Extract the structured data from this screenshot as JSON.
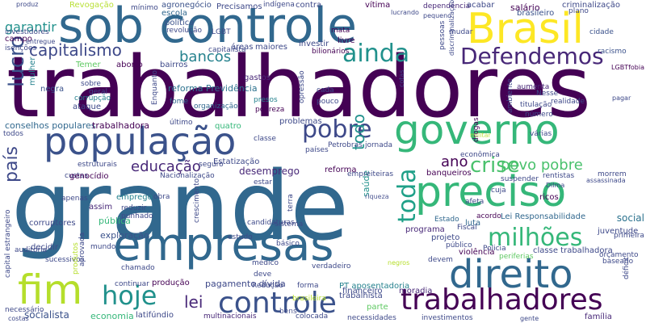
{
  "words": [
    {
      "text": "trabalhadores",
      "color": "#440154"
    },
    {
      "text": "grande",
      "color": "#31688e"
    },
    {
      "text": "sob controle",
      "color": "#31688e"
    },
    {
      "text": "governo",
      "color": "#35b779"
    },
    {
      "text": "população",
      "color": "#3b528b"
    },
    {
      "text": "empresas",
      "color": "#31688e"
    },
    {
      "text": "preciso",
      "color": "#35b779"
    },
    {
      "text": "Brasil",
      "color": "#fde725"
    },
    {
      "text": "direito",
      "color": "#31688e"
    },
    {
      "text": "controle",
      "color": "#3b528b"
    },
    {
      "text": "trabalhadores",
      "color": "#440154"
    },
    {
      "text": "fim",
      "color": "#b5de2b"
    },
    {
      "text": "hoje",
      "color": "#21918c"
    },
    {
      "text": "milhões",
      "color": "#35b779"
    },
    {
      "text": "Defendemos",
      "color": "#482878"
    },
    {
      "text": "ainda",
      "color": "#21918c"
    },
    {
      "text": "pobre",
      "color": "#3e4989"
    },
    {
      "text": "capitalismo",
      "color": "#3e4989"
    },
    {
      "text": "lucro",
      "color": "#3b528b"
    },
    {
      "text": "bancos",
      "color": "#26828e"
    },
    {
      "text": "crise",
      "color": "#4ac16d"
    },
    {
      "text": "toda",
      "color": "#1fa088"
    },
    {
      "text": "país",
      "color": "#3e4989"
    },
    {
      "text": "educação",
      "color": "#482878"
    },
    {
      "text": "povo pobre",
      "color": "#4ac16d"
    },
    {
      "text": "ano",
      "color": "#440154"
    },
    {
      "text": "todo",
      "color": "#21918c"
    },
    {
      "text": "lei",
      "color": "#482878"
    },
    {
      "text": "garantir",
      "color": "#21918c"
    },
    {
      "text": "campo",
      "color": "#440154"
    },
    {
      "text": "Temer",
      "color": "#5ec962"
    },
    {
      "text": "mulher",
      "color": "#26828e"
    },
    {
      "text": "negra",
      "color": "#3b528b"
    },
    {
      "text": "aborto",
      "color": "#440154"
    },
    {
      "text": "bairros",
      "color": "#3e4989"
    },
    {
      "text": "reforma Previdência",
      "color": "#2c728e"
    },
    {
      "text": "gastos",
      "color": "#482878"
    },
    {
      "text": "conselhos populares",
      "color": "#31688e"
    },
    {
      "text": "trabalhadora",
      "color": "#440154"
    },
    {
      "text": "desemprego",
      "color": "#482878"
    },
    {
      "text": "Estatização",
      "color": "#3e4989"
    },
    {
      "text": "reforma",
      "color": "#440154"
    },
    {
      "text": "saúde",
      "color": "#21918c"
    },
    {
      "text": "problemas",
      "color": "#3e4989"
    },
    {
      "text": "Lei Responsabilidade",
      "color": "#31688e"
    },
    {
      "text": "social",
      "color": "#2c728e"
    },
    {
      "text": "juventude",
      "color": "#3e4989"
    },
    {
      "text": "classe trabalhadora",
      "color": "#3e4989"
    },
    {
      "text": "violência",
      "color": "#440154"
    },
    {
      "text": "exploração",
      "color": "#3b528b"
    },
    {
      "text": "pagamento dívida",
      "color": "#3e4989"
    },
    {
      "text": "PT aposentadoria",
      "color": "#26828e"
    },
    {
      "text": "economia",
      "color": "#35b779"
    },
    {
      "text": "socialista",
      "color": "#3b528b"
    },
    {
      "text": "produção",
      "color": "#440154"
    },
    {
      "text": "trabalhista",
      "color": "#3e4989"
    },
    {
      "text": "moradia",
      "color": "#482878"
    },
    {
      "text": "financeiro",
      "color": "#3e4989"
    },
    {
      "text": "parte",
      "color": "#5ec962"
    },
    {
      "text": "cidade",
      "color": "#3b528b"
    },
    {
      "text": "latifúndio",
      "color": "#3e4989"
    },
    {
      "text": "multinacionais",
      "color": "#482878"
    },
    {
      "text": "colocada",
      "color": "#3e4989"
    },
    {
      "text": "necessidades",
      "color": "#3e4989"
    },
    {
      "text": "investimentos",
      "color": "#3e4989"
    },
    {
      "text": "família",
      "color": "#482878"
    },
    {
      "text": "emprego",
      "color": "#26828e"
    },
    {
      "text": "pública",
      "color": "#35b779"
    },
    {
      "text": "assim",
      "color": "#482878"
    },
    {
      "text": "obra",
      "color": "#3e4989"
    },
    {
      "text": "luta",
      "color": "#31688e"
    },
    {
      "text": "ricos",
      "color": "#440154"
    },
    {
      "text": "Estado",
      "color": "#31688e"
    },
    {
      "text": "acordo",
      "color": "#440154"
    },
    {
      "text": "programa",
      "color": "#482878"
    },
    {
      "text": "projeto",
      "color": "#3e4989"
    },
    {
      "text": "devem",
      "color": "#3e4989"
    },
    {
      "text": "Policia",
      "color": "#3e4989"
    },
    {
      "text": "periferias",
      "color": "#5ec962"
    },
    {
      "text": "drogas",
      "color": "#440154"
    },
    {
      "text": "militar",
      "color": "#b5de2b"
    },
    {
      "text": "banqueiros",
      "color": "#440154"
    },
    {
      "text": "racismo",
      "color": "#3b528b"
    },
    {
      "text": "agronegócio",
      "color": "#3b528b"
    },
    {
      "text": "Precisamos",
      "color": "#3e4989"
    },
    {
      "text": "indígena",
      "color": "#3e4989"
    },
    {
      "text": "contra",
      "color": "#3e4989"
    },
    {
      "text": "vítima",
      "color": "#440154"
    },
    {
      "text": "dependência",
      "color": "#482878"
    },
    {
      "text": "acabar",
      "color": "#3e4989"
    },
    {
      "text": "salário",
      "color": "#440154"
    },
    {
      "text": "brasileiro",
      "color": "#3b528b"
    },
    {
      "text": "criminalização",
      "color": "#3e4989"
    },
    {
      "text": "Revogação",
      "color": "#b5de2b"
    },
    {
      "text": "mínimo",
      "color": "#3e4989"
    },
    {
      "text": "escola",
      "color": "#31688e"
    },
    {
      "text": "política",
      "color": "#3b528b"
    },
    {
      "text": "revolução",
      "color": "#3e4989"
    },
    {
      "text": "LGBT",
      "color": "#3e4989"
    },
    {
      "text": "investir",
      "color": "#3e4989"
    },
    {
      "text": "maiores",
      "color": "#3e4989"
    },
    {
      "text": "áreas",
      "color": "#3e4989"
    },
    {
      "text": "capitalista",
      "color": "#3e4989"
    },
    {
      "text": "bilionários",
      "color": "#440154"
    },
    {
      "text": "mata",
      "color": "#440154"
    },
    {
      "text": "livre",
      "color": "#440154"
    },
    {
      "text": "plano",
      "color": "#3e4989"
    },
    {
      "text": "LGBTfobia",
      "color": "#440154"
    },
    {
      "text": "realidade",
      "color": "#3e4989"
    },
    {
      "text": "titulação",
      "color": "#3e4989"
    },
    {
      "text": "número",
      "color": "#3e4989"
    },
    {
      "text": "sobre",
      "color": "#3e4989"
    },
    {
      "text": "geral",
      "color": "#3e4989"
    },
    {
      "text": "ataque",
      "color": "#3e4989"
    },
    {
      "text": "corrupção",
      "color": "#26828e"
    },
    {
      "text": "Enquanto",
      "color": "#3e4989"
    },
    {
      "text": "organização",
      "color": "#31688e"
    },
    {
      "text": "fome",
      "color": "#31688e"
    },
    {
      "text": "presos",
      "color": "#26828e"
    },
    {
      "text": "pobreza",
      "color": "#440154"
    },
    {
      "text": "cada",
      "color": "#3e4989"
    },
    {
      "text": "pouco",
      "color": "#3e4989"
    },
    {
      "text": "opressão",
      "color": "#3e4989"
    },
    {
      "text": "Nesse",
      "color": "#3e4989"
    },
    {
      "text": "aumenta",
      "color": "#482878"
    },
    {
      "text": "quatro",
      "color": "#35b779"
    },
    {
      "text": "último",
      "color": "#3e4989"
    },
    {
      "text": "jornada",
      "color": "#3e4989"
    },
    {
      "text": "países",
      "color": "#3e4989"
    },
    {
      "text": "Petrobras",
      "color": "#3e4989"
    },
    {
      "text": "classe",
      "color": "#3e4989"
    },
    {
      "text": "estruturais",
      "color": "#3e4989"
    },
    {
      "text": "custas",
      "color": "#3e4989"
    },
    {
      "text": "genocídio",
      "color": "#440154"
    },
    {
      "text": "Nacionalização",
      "color": "#3e4989"
    },
    {
      "text": "seguro",
      "color": "#3e4989"
    },
    {
      "text": "estar",
      "color": "#3e4989"
    },
    {
      "text": "empreiteiras",
      "color": "#3e4989"
    },
    {
      "text": "várias",
      "color": "#3e4989"
    },
    {
      "text": "suspender",
      "color": "#3e4989"
    },
    {
      "text": "morrem",
      "color": "#3e4989"
    },
    {
      "text": "assassinada",
      "color": "#3e4989"
    },
    {
      "text": "apenas",
      "color": "#3e4989"
    },
    {
      "text": "cuja",
      "color": "#3e4989"
    },
    {
      "text": "reduzir",
      "color": "#3e4989"
    },
    {
      "text": "punhado",
      "color": "#3e4989"
    },
    {
      "text": "corruptores",
      "color": "#3e4989"
    },
    {
      "text": "capital estrangeiro",
      "color": "#3e4989"
    },
    {
      "text": "decidir",
      "color": "#3e4989"
    },
    {
      "text": "mundo",
      "color": "#3e4989"
    },
    {
      "text": "estudo",
      "color": "#3e4989"
    },
    {
      "text": "candidaturas",
      "color": "#3e4989"
    },
    {
      "text": "sistema",
      "color": "#3e4989"
    },
    {
      "text": "verdadeiro",
      "color": "#3e4989"
    },
    {
      "text": "crescimento",
      "color": "#3e4989"
    },
    {
      "text": "terra",
      "color": "#3e4989"
    },
    {
      "text": "Fiscal",
      "color": "#3e4989"
    },
    {
      "text": "público",
      "color": "#3e4989"
    },
    {
      "text": "afeta",
      "color": "#3e4989"
    },
    {
      "text": "primeira",
      "color": "#3e4989"
    },
    {
      "text": "orçamento",
      "color": "#3e4989"
    },
    {
      "text": "baseado",
      "color": "#3e4989"
    },
    {
      "text": "déficit",
      "color": "#3e4989"
    },
    {
      "text": "auditoria",
      "color": "#3e4989"
    },
    {
      "text": "sucessivos",
      "color": "#3e4989"
    },
    {
      "text": "chamado",
      "color": "#3e4989"
    },
    {
      "text": "continuar",
      "color": "#3e4989"
    },
    {
      "text": "deve",
      "color": "#3e4989"
    },
    {
      "text": "Redução",
      "color": "#3e4989"
    },
    {
      "text": "forma",
      "color": "#3e4989"
    },
    {
      "text": "brasileira",
      "color": "#b5de2b"
    },
    {
      "text": "bens",
      "color": "#3e4989"
    },
    {
      "text": "médico",
      "color": "#3e4989"
    },
    {
      "text": "básico",
      "color": "#3e4989"
    },
    {
      "text": "mudar",
      "color": "#3e4989"
    },
    {
      "text": "pessoas",
      "color": "#3e4989"
    },
    {
      "text": "aprovada",
      "color": "#3e4989"
    },
    {
      "text": "produtos",
      "color": "#b5de2b"
    },
    {
      "text": "entregue",
      "color": "#3e4989"
    },
    {
      "text": "isenções",
      "color": "#3e4989"
    },
    {
      "text": "investidores",
      "color": "#3e4989"
    },
    {
      "text": "produz",
      "color": "#3e4989"
    },
    {
      "text": "todos",
      "color": "#3e4989"
    },
    {
      "text": "econômica",
      "color": "#3e4989"
    },
    {
      "text": "necessário",
      "color": "#3e4989"
    },
    {
      "text": "gente",
      "color": "#3e4989"
    },
    {
      "text": "costas",
      "color": "#3e4989"
    },
    {
      "text": "negros",
      "color": "#b5de2b"
    },
    {
      "text": "riqueza",
      "color": "#3e4989"
    },
    {
      "text": "rentistas",
      "color": "#3e4989"
    },
    {
      "text": "Dilma",
      "color": "#3e4989"
    },
    {
      "text": "lucrando",
      "color": "#3e4989"
    },
    {
      "text": "pequeno",
      "color": "#3e4989"
    },
    {
      "text": "discriminalização",
      "color": "#3e4989"
    },
    {
      "text": "ambiente",
      "color": "#3e4989"
    },
    {
      "text": "cotas",
      "color": "#3e4989"
    },
    {
      "text": "pagar",
      "color": "#3e4989"
    }
  ]
}
